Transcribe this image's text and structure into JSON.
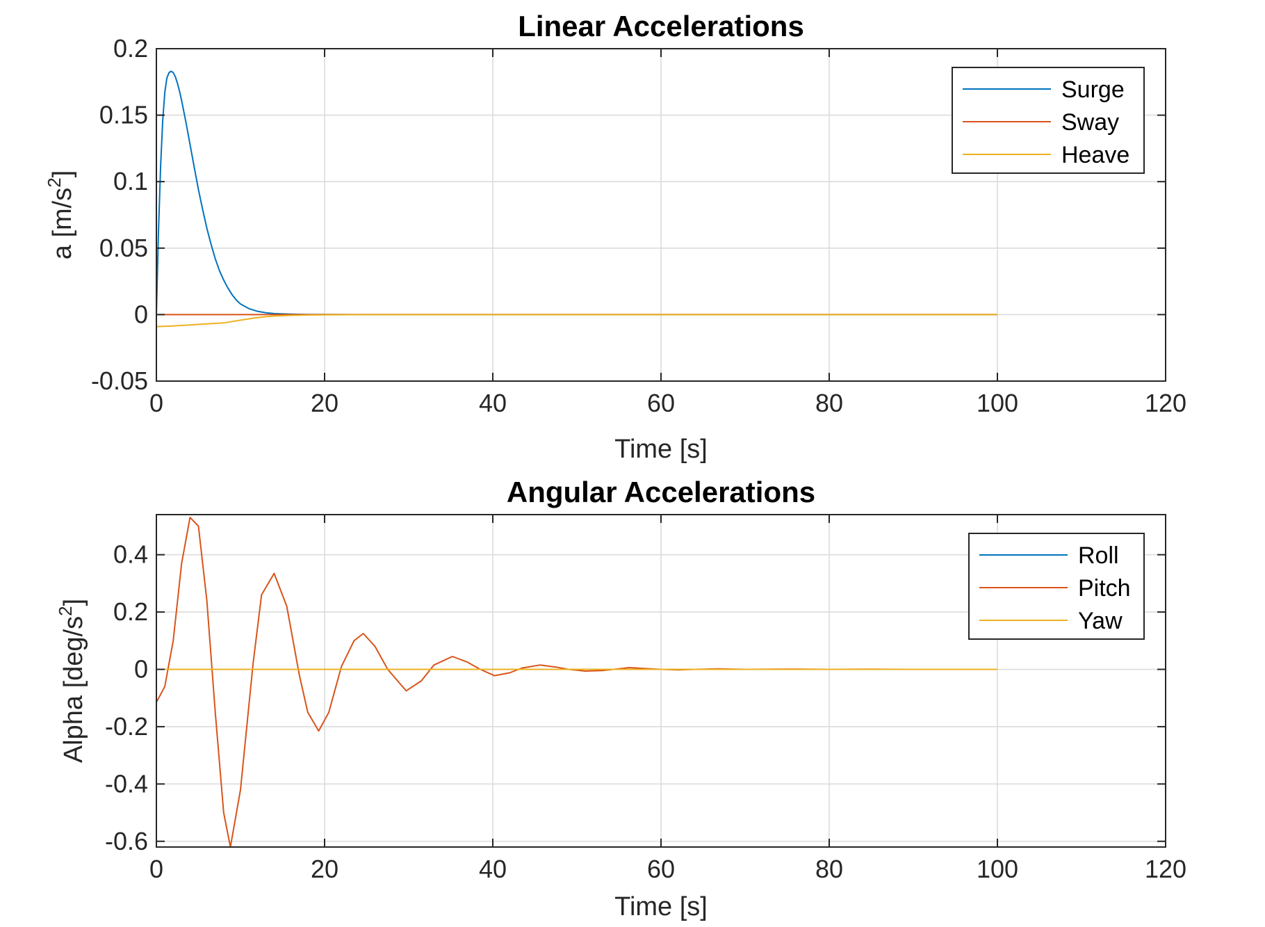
{
  "chart_data": [
    {
      "type": "line",
      "title": "Linear Accelerations",
      "xlabel": "Time [s]",
      "ylabel": "a [m/s",
      "ylabel_sup": "2",
      "ylabel_end": "]",
      "xlim": [
        0,
        120
      ],
      "ylim": [
        -0.05,
        0.2
      ],
      "xticks": [
        0,
        20,
        40,
        60,
        80,
        100,
        120
      ],
      "xtick_labels": [
        "0",
        "20",
        "40",
        "60",
        "80",
        "100",
        "120"
      ],
      "yticks": [
        -0.05,
        0,
        0.05,
        0.1,
        0.15,
        0.2
      ],
      "ytick_labels": [
        "-0.05",
        "0",
        "0.05",
        "0.1",
        "0.15",
        "0.2"
      ],
      "grid": true,
      "legend_position": "top-right",
      "series": [
        {
          "name": "Surge",
          "color": "#0072BD",
          "x": [
            0,
            0.25,
            0.5,
            0.75,
            1,
            1.25,
            1.5,
            1.75,
            2,
            2.25,
            2.5,
            2.75,
            3,
            3.5,
            4,
            4.5,
            5,
            5.5,
            6,
            6.5,
            7,
            7.5,
            8,
            8.5,
            9,
            9.5,
            10,
            11,
            12,
            13,
            14,
            15,
            16,
            17,
            18,
            20,
            25,
            30,
            40,
            60,
            80,
            100
          ],
          "y": [
            0,
            0.062,
            0.112,
            0.146,
            0.167,
            0.178,
            0.182,
            0.183,
            0.182,
            0.179,
            0.174,
            0.168,
            0.161,
            0.145,
            0.128,
            0.111,
            0.094,
            0.079,
            0.065,
            0.053,
            0.042,
            0.033,
            0.026,
            0.02,
            0.015,
            0.011,
            0.008,
            0.0045,
            0.0025,
            0.0014,
            0.0008,
            0.0005,
            0.0003,
            0.0002,
            0.0001,
            0.0001,
            0,
            0,
            0,
            0,
            0,
            0
          ]
        },
        {
          "name": "Sway",
          "color": "#D95319",
          "x": [
            0,
            100
          ],
          "y": [
            0,
            0
          ]
        },
        {
          "name": "Heave",
          "color": "#EDB120",
          "x": [
            0,
            2,
            4,
            6,
            8,
            9,
            10,
            11,
            12,
            13,
            14,
            16,
            18,
            20,
            25,
            30,
            40,
            60,
            80,
            100
          ],
          "y": [
            -0.009,
            -0.0085,
            -0.0078,
            -0.007,
            -0.0062,
            -0.0052,
            -0.0042,
            -0.0032,
            -0.0023,
            -0.0016,
            -0.0011,
            -0.0006,
            -0.0003,
            -0.0002,
            0,
            0,
            0,
            0,
            0,
            0
          ]
        }
      ]
    },
    {
      "type": "line",
      "title": "Angular Accelerations",
      "xlabel": "Time [s]",
      "ylabel": "Alpha [deg/s",
      "ylabel_sup": "2",
      "ylabel_end": "]",
      "xlim": [
        0,
        120
      ],
      "ylim": [
        -0.62,
        0.54
      ],
      "xticks": [
        0,
        20,
        40,
        60,
        80,
        100,
        120
      ],
      "xtick_labels": [
        "0",
        "20",
        "40",
        "60",
        "80",
        "100",
        "120"
      ],
      "yticks": [
        -0.6,
        -0.4,
        -0.2,
        0,
        0.2,
        0.4
      ],
      "ytick_labels": [
        "-0.6",
        "-0.4",
        "-0.2",
        "0",
        "0.2",
        "0.4"
      ],
      "grid": true,
      "legend_position": "top-right",
      "series": [
        {
          "name": "Roll",
          "color": "#0072BD",
          "x": [
            0,
            100
          ],
          "y": [
            0,
            0
          ]
        },
        {
          "name": "Pitch",
          "color": "#D95319",
          "x": [
            0,
            1,
            2,
            3,
            4,
            5,
            6,
            7,
            8,
            8.8,
            10,
            11.5,
            12.5,
            14,
            15.5,
            17,
            18,
            19.3,
            20.5,
            22,
            23.5,
            24.6,
            26,
            27.5,
            29.7,
            31.5,
            33,
            35.2,
            37,
            38.5,
            40.2,
            42,
            43.5,
            45.6,
            47.5,
            49,
            51,
            53,
            55,
            56.2,
            58,
            60,
            62,
            64,
            66.8,
            70,
            75,
            80,
            85,
            90,
            95,
            100
          ],
          "y": [
            -0.115,
            -0.06,
            0.1,
            0.37,
            0.53,
            0.5,
            0.24,
            -0.15,
            -0.5,
            -0.62,
            -0.42,
            0.02,
            0.26,
            0.335,
            0.22,
            -0.02,
            -0.15,
            -0.215,
            -0.15,
            0.01,
            0.1,
            0.125,
            0.08,
            0.0,
            -0.075,
            -0.04,
            0.015,
            0.045,
            0.025,
            0.0,
            -0.022,
            -0.012,
            0.005,
            0.015,
            0.008,
            0.0,
            -0.006,
            -0.004,
            0.002,
            0.006,
            0.003,
            0.0,
            -0.002,
            0.0,
            0.002,
            0.0,
            0.001,
            0.0,
            0.0005,
            0.0,
            0.0,
            0.0
          ]
        },
        {
          "name": "Yaw",
          "color": "#EDB120",
          "x": [
            0,
            100
          ],
          "y": [
            0,
            0
          ]
        }
      ]
    }
  ]
}
